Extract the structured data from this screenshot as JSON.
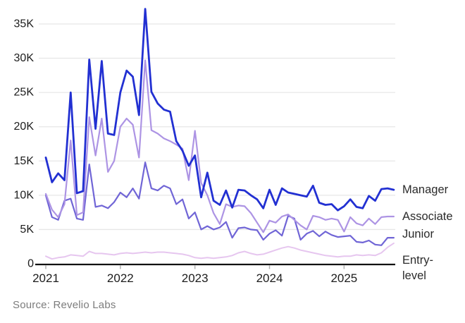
{
  "chart_data": {
    "type": "line",
    "title": "",
    "unit": "thousands (K)",
    "frequency": "monthly",
    "grid": "horizontal",
    "legend_position": "right-of-line-ends",
    "ylim": [
      0,
      37.5
    ],
    "y_ticks": [
      0,
      5,
      10,
      15,
      20,
      25,
      30,
      35
    ],
    "y_tick_labels": [
      "0",
      "5K",
      "10K",
      "15K",
      "20K",
      "25K",
      "30K",
      "35K"
    ],
    "x_tick_labels": [
      "2021",
      "2022",
      "2023",
      "2024",
      "2025"
    ],
    "x": [
      "2021-01",
      "2021-02",
      "2021-03",
      "2021-04",
      "2021-05",
      "2021-06",
      "2021-07",
      "2021-08",
      "2021-09",
      "2021-10",
      "2021-11",
      "2021-12",
      "2022-01",
      "2022-02",
      "2022-03",
      "2022-04",
      "2022-05",
      "2022-06",
      "2022-07",
      "2022-08",
      "2022-09",
      "2022-10",
      "2022-11",
      "2022-12",
      "2023-01",
      "2023-02",
      "2023-03",
      "2023-04",
      "2023-05",
      "2023-06",
      "2023-07",
      "2023-08",
      "2023-09",
      "2023-10",
      "2023-11",
      "2023-12",
      "2024-01",
      "2024-02",
      "2024-03",
      "2024-04",
      "2024-05",
      "2024-06",
      "2024-07",
      "2024-08",
      "2024-09",
      "2024-10",
      "2024-11",
      "2024-12",
      "2025-01",
      "2025-02",
      "2025-03",
      "2025-04",
      "2025-05",
      "2025-06",
      "2025-07",
      "2025-08",
      "2025-09"
    ],
    "series": [
      {
        "id": "entry",
        "name": "Entry-level",
        "label_lines": [
          "Entry-",
          "level"
        ],
        "color": "#e6c6ef",
        "stroke_width": 2.0,
        "values": [
          1.1,
          0.7,
          0.9,
          1.0,
          1.3,
          1.2,
          1.1,
          1.8,
          1.5,
          1.5,
          1.4,
          1.3,
          1.5,
          1.6,
          1.5,
          1.6,
          1.7,
          1.6,
          1.7,
          1.7,
          1.6,
          1.5,
          1.4,
          1.2,
          0.9,
          0.8,
          0.9,
          0.8,
          0.9,
          1.0,
          1.2,
          1.6,
          1.8,
          1.5,
          1.3,
          1.4,
          1.7,
          2.0,
          2.3,
          2.5,
          2.3,
          2.0,
          1.8,
          1.6,
          1.4,
          1.2,
          1.1,
          1.0,
          1.1,
          1.1,
          1.3,
          1.2,
          1.3,
          1.2,
          1.6,
          2.4,
          3.0
        ]
      },
      {
        "id": "junior",
        "name": "Junior",
        "label_lines": [
          "Junior"
        ],
        "color": "#7065d6",
        "stroke_width": 2.2,
        "values": [
          10.0,
          6.8,
          6.4,
          9.2,
          9.5,
          6.6,
          6.4,
          14.5,
          8.3,
          8.5,
          8.1,
          9.0,
          10.4,
          9.7,
          11.0,
          9.5,
          14.8,
          11.0,
          10.7,
          11.4,
          11.0,
          8.7,
          9.4,
          6.6,
          7.5,
          5.0,
          5.5,
          5.0,
          5.3,
          6.1,
          3.8,
          5.2,
          5.3,
          5.0,
          4.9,
          3.5,
          4.4,
          4.9,
          4.1,
          7.0,
          6.6,
          3.5,
          4.4,
          4.8,
          4.0,
          4.7,
          4.2,
          3.9,
          4.0,
          4.1,
          3.2,
          3.1,
          3.4,
          2.8,
          2.7,
          3.8,
          3.8
        ]
      },
      {
        "id": "associate",
        "name": "Associate",
        "label_lines": [
          "Associate"
        ],
        "color": "#ad94e4",
        "stroke_width": 2.2,
        "values": [
          10.2,
          7.9,
          6.8,
          8.7,
          18.0,
          7.1,
          7.5,
          21.4,
          15.8,
          21.2,
          13.4,
          15.0,
          20.0,
          21.2,
          20.3,
          15.5,
          29.7,
          19.5,
          19.0,
          18.3,
          17.9,
          17.4,
          16.8,
          12.2,
          19.4,
          11.8,
          10.0,
          7.4,
          5.8,
          8.7,
          8.3,
          8.5,
          8.4,
          7.4,
          6.0,
          4.6,
          6.3,
          6.0,
          6.9,
          7.2,
          6.4,
          5.6,
          5.0,
          7.0,
          6.8,
          6.4,
          6.6,
          6.4,
          4.7,
          6.8,
          5.9,
          5.6,
          6.6,
          5.8,
          6.8,
          6.9,
          6.9
        ]
      },
      {
        "id": "manager",
        "name": "Manager",
        "label_lines": [
          "Manager"
        ],
        "color": "#2230d2",
        "stroke_width": 2.8,
        "values": [
          15.5,
          11.9,
          13.2,
          12.2,
          25.0,
          10.3,
          10.6,
          29.8,
          19.7,
          29.6,
          19.0,
          18.8,
          25.0,
          28.2,
          27.3,
          21.7,
          37.2,
          25.1,
          23.4,
          22.5,
          22.2,
          17.9,
          16.5,
          14.3,
          15.8,
          9.7,
          13.3,
          9.2,
          8.6,
          10.7,
          8.2,
          10.8,
          10.7,
          10.0,
          9.4,
          8.1,
          10.8,
          8.6,
          11.0,
          10.4,
          10.2,
          10.0,
          9.8,
          11.4,
          8.9,
          8.6,
          8.7,
          7.8,
          8.4,
          9.4,
          8.3,
          8.1,
          9.9,
          9.2,
          10.9,
          11.0,
          10.8
        ]
      }
    ],
    "colors": {
      "grid": "#e7e7e7",
      "axis": "#111111",
      "tick_mark": "#b0b0b0",
      "tick_text": "#1c1c1c",
      "series_label_text": "#2b2b2b"
    }
  },
  "footer": {
    "source": "Source: Revelio Labs"
  }
}
